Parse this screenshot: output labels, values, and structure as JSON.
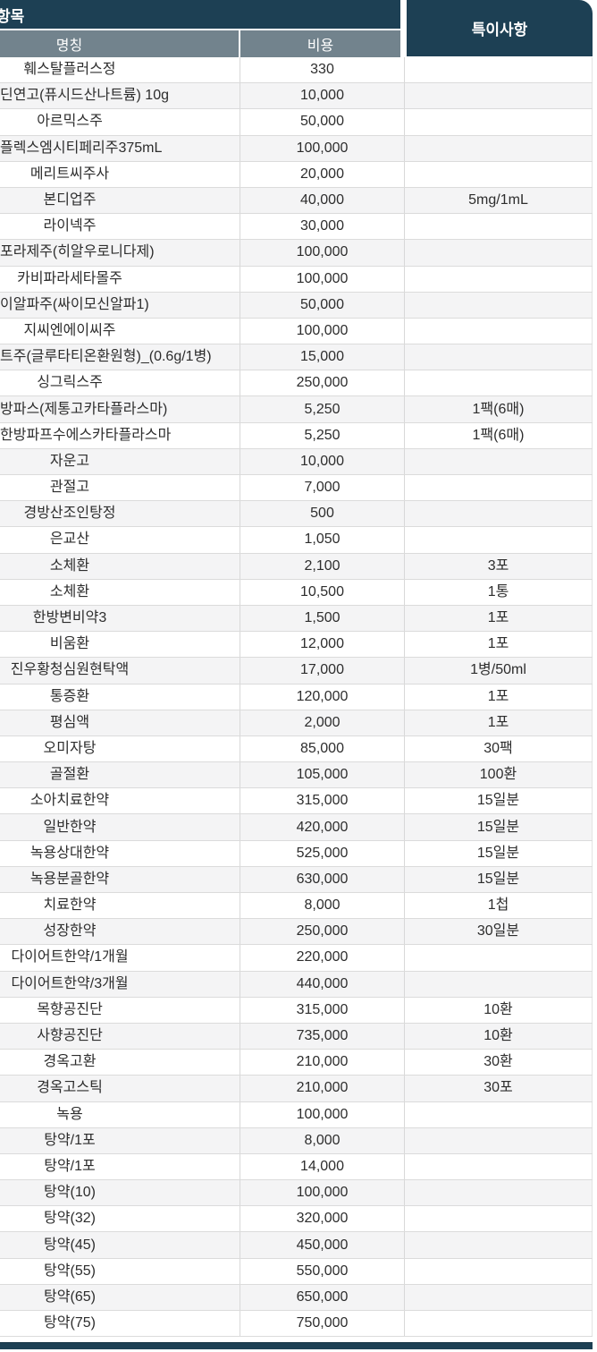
{
  "colors": {
    "header_navy": "#1d4054",
    "subheader_slate": "#72838d",
    "row_alt_gray": "#f4f4f5",
    "grid_line": "#dbdbdb",
    "body_text": "#2d2d2d",
    "header_text": "#ffffff"
  },
  "table": {
    "group_header": "항목",
    "notes_header": "특이사항",
    "columns": {
      "name": "명칭",
      "cost": "비용"
    },
    "rows": [
      {
        "name": "훼스탈플러스정",
        "cost": "330",
        "note": "",
        "cut": false
      },
      {
        "name": "딘연고(퓨시드산나트륨) 10g",
        "cost": "10,000",
        "note": "",
        "cut": true
      },
      {
        "name": "아르믹스주",
        "cost": "50,000",
        "note": "",
        "cut": false
      },
      {
        "name": "플렉스엠시티페리주375mL",
        "cost": "100,000",
        "note": "",
        "cut": true
      },
      {
        "name": "메리트씨주사",
        "cost": "20,000",
        "note": "",
        "cut": false
      },
      {
        "name": "본디업주",
        "cost": "40,000",
        "note": "5mg/1mL",
        "cut": false
      },
      {
        "name": "라이넥주",
        "cost": "30,000",
        "note": "",
        "cut": false
      },
      {
        "name": "포라제주(히알우로니다제)",
        "cost": "100,000",
        "note": "",
        "cut": true
      },
      {
        "name": "카비파라세타몰주",
        "cost": "100,000",
        "note": "",
        "cut": false
      },
      {
        "name": "이알파주(싸이모신알파1)",
        "cost": "50,000",
        "note": "",
        "cut": true
      },
      {
        "name": "지씨엔에이씨주",
        "cost": "100,000",
        "note": "",
        "cut": false
      },
      {
        "name": "트주(글루타티온환원형)_(0.6g/1병)",
        "cost": "15,000",
        "note": "",
        "cut": true
      },
      {
        "name": "싱그릭스주",
        "cost": "250,000",
        "note": "",
        "cut": false
      },
      {
        "name": "방파스(제통고카타플라스마)",
        "cost": "5,250",
        "note": "1팩(6매)",
        "cut": true
      },
      {
        "name": "한방파프수에스카타플라스마",
        "cost": "5,250",
        "note": "1팩(6매)",
        "cut": true
      },
      {
        "name": "자운고",
        "cost": "10,000",
        "note": "",
        "cut": false
      },
      {
        "name": "관절고",
        "cost": "7,000",
        "note": "",
        "cut": false
      },
      {
        "name": "경방산조인탕정",
        "cost": "500",
        "note": "",
        "cut": false
      },
      {
        "name": "은교산",
        "cost": "1,050",
        "note": "",
        "cut": false
      },
      {
        "name": "소체환",
        "cost": "2,100",
        "note": "3포",
        "cut": false
      },
      {
        "name": "소체환",
        "cost": "10,500",
        "note": "1통",
        "cut": false
      },
      {
        "name": "한방변비약3",
        "cost": "1,500",
        "note": "1포",
        "cut": false
      },
      {
        "name": "비움환",
        "cost": "12,000",
        "note": "1포",
        "cut": false
      },
      {
        "name": "진우황청심원현탁액",
        "cost": "17,000",
        "note": "1병/50ml",
        "cut": false
      },
      {
        "name": "통증환",
        "cost": "120,000",
        "note": "1포",
        "cut": false
      },
      {
        "name": "평심액",
        "cost": "2,000",
        "note": "1포",
        "cut": false
      },
      {
        "name": "오미자탕",
        "cost": "85,000",
        "note": "30팩",
        "cut": false
      },
      {
        "name": "골절환",
        "cost": "105,000",
        "note": "100환",
        "cut": false
      },
      {
        "name": "소아치료한약",
        "cost": "315,000",
        "note": "15일분",
        "cut": false
      },
      {
        "name": "일반한약",
        "cost": "420,000",
        "note": "15일분",
        "cut": false
      },
      {
        "name": "녹용상대한약",
        "cost": "525,000",
        "note": "15일분",
        "cut": false
      },
      {
        "name": "녹용분골한약",
        "cost": "630,000",
        "note": "15일분",
        "cut": false
      },
      {
        "name": "치료한약",
        "cost": "8,000",
        "note": "1첩",
        "cut": false
      },
      {
        "name": "성장한약",
        "cost": "250,000",
        "note": "30일분",
        "cut": false
      },
      {
        "name": "다이어트한약/1개월",
        "cost": "220,000",
        "note": "",
        "cut": false
      },
      {
        "name": "다이어트한약/3개월",
        "cost": "440,000",
        "note": "",
        "cut": false
      },
      {
        "name": "목향공진단",
        "cost": "315,000",
        "note": "10환",
        "cut": false
      },
      {
        "name": "사향공진단",
        "cost": "735,000",
        "note": "10환",
        "cut": false
      },
      {
        "name": "경옥고환",
        "cost": "210,000",
        "note": "30환",
        "cut": false
      },
      {
        "name": "경옥고스틱",
        "cost": "210,000",
        "note": "30포",
        "cut": false
      },
      {
        "name": "녹용",
        "cost": "100,000",
        "note": "",
        "cut": false
      },
      {
        "name": "탕약/1포",
        "cost": "8,000",
        "note": "",
        "cut": false
      },
      {
        "name": "탕약/1포",
        "cost": "14,000",
        "note": "",
        "cut": false
      },
      {
        "name": "탕약(10)",
        "cost": "100,000",
        "note": "",
        "cut": false
      },
      {
        "name": "탕약(32)",
        "cost": "320,000",
        "note": "",
        "cut": false
      },
      {
        "name": "탕약(45)",
        "cost": "450,000",
        "note": "",
        "cut": false
      },
      {
        "name": "탕약(55)",
        "cost": "550,000",
        "note": "",
        "cut": false
      },
      {
        "name": "탕약(65)",
        "cost": "650,000",
        "note": "",
        "cut": false
      },
      {
        "name": "탕약(75)",
        "cost": "750,000",
        "note": "",
        "cut": false
      }
    ]
  }
}
